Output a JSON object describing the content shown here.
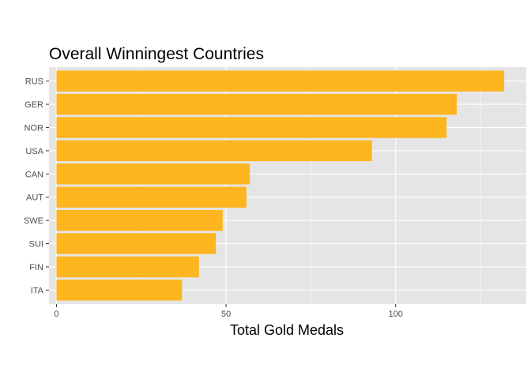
{
  "chart_data": {
    "type": "bar",
    "orientation": "horizontal",
    "title": "Overall Winningest Countries",
    "xlabel": "Total Gold Medals",
    "ylabel": "",
    "categories": [
      "RUS",
      "GER",
      "NOR",
      "USA",
      "CAN",
      "AUT",
      "SWE",
      "SUI",
      "FIN",
      "ITA"
    ],
    "values": [
      132,
      118,
      115,
      93,
      57,
      56,
      49,
      47,
      42,
      37
    ],
    "xlim": [
      -2.2,
      138.5
    ],
    "xticks": [
      0,
      50,
      100
    ],
    "grid": true,
    "legend": "none",
    "colors": {
      "bar": "#FDB520",
      "panel": "#E5E5E5",
      "grid": "#FFFFFF",
      "text": "#4D4D4D",
      "title": "#000000"
    }
  }
}
